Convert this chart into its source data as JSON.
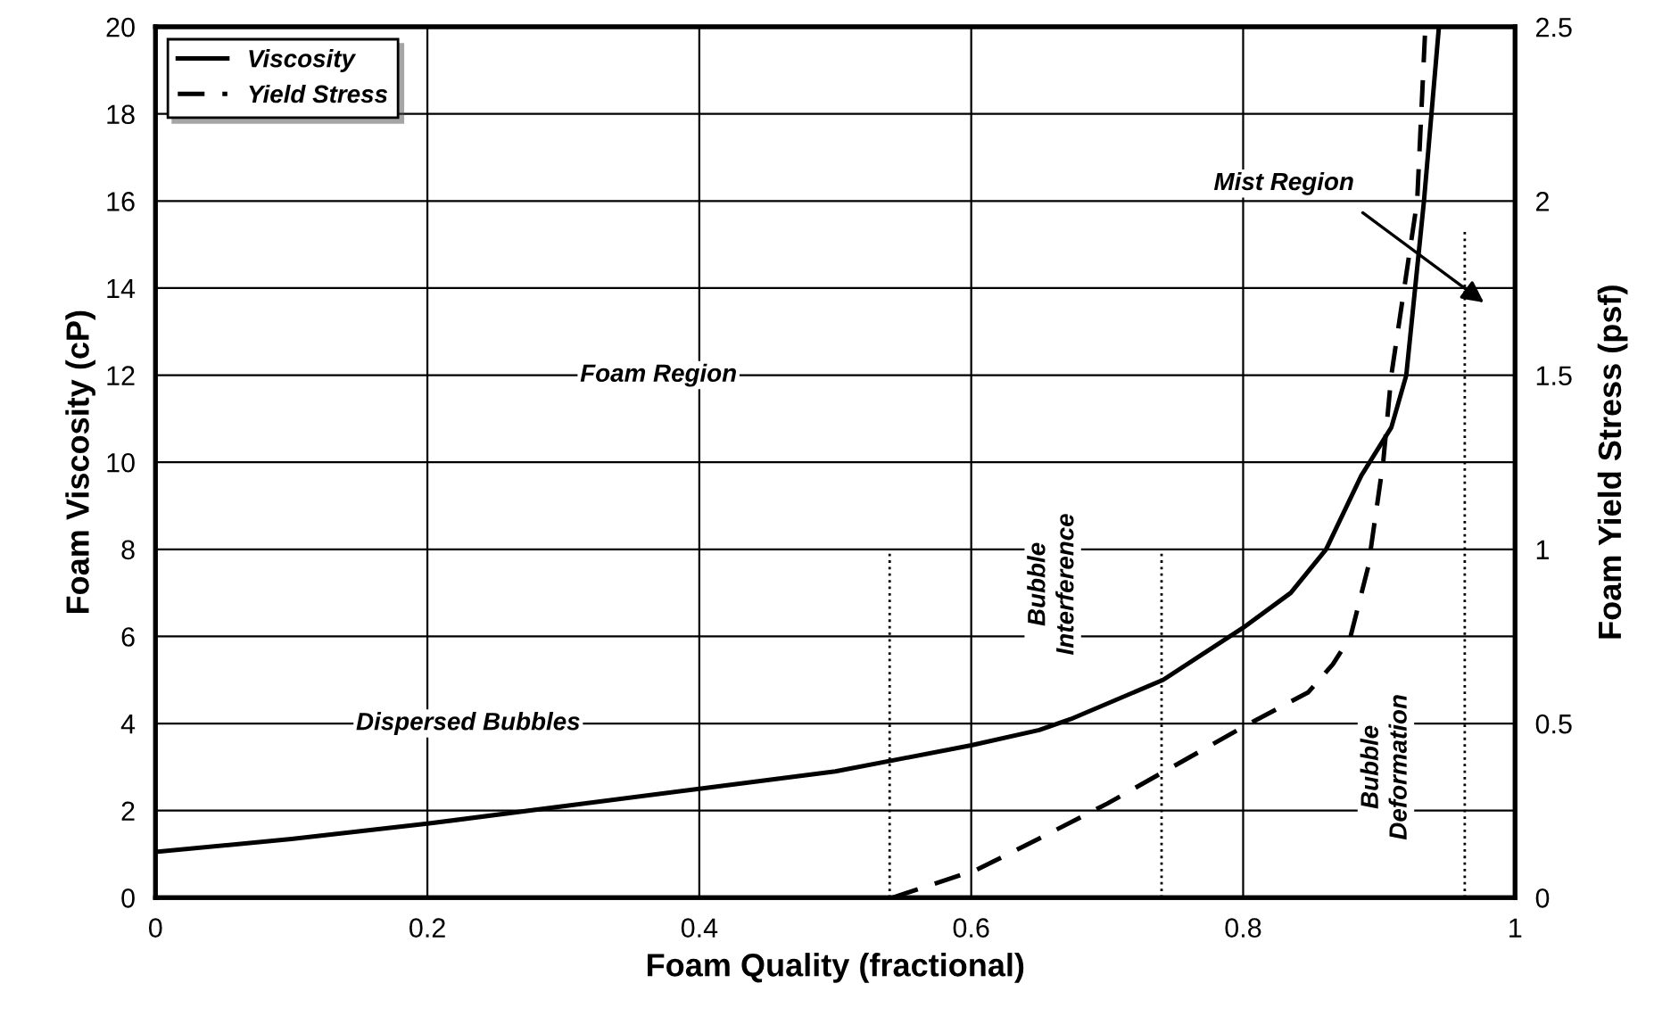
{
  "chart_data": {
    "type": "line",
    "xlabel": "Foam Quality (fractional)",
    "ylabel": "Foam Viscosity (cP)",
    "y2label": "Foam Yield Stress (psf)",
    "xlim": [
      0,
      1
    ],
    "xticks": [
      0,
      0.2,
      0.4,
      0.6,
      0.8,
      1
    ],
    "ylim": [
      0,
      20
    ],
    "yticks": [
      0,
      2,
      4,
      6,
      8,
      10,
      12,
      14,
      16,
      18,
      20
    ],
    "y2lim": [
      0,
      2.5
    ],
    "y2ticks": [
      0,
      0.5,
      1,
      1.5,
      2,
      2.5
    ],
    "grid": true,
    "legend": "top left",
    "marker": "none",
    "series": [
      {
        "name": "Viscosity",
        "color": "#000000",
        "line_style": "solid",
        "x": [
          0,
          0.1,
          0.2,
          0.3,
          0.4,
          0.5,
          0.55,
          0.6,
          0.65,
          0.673,
          0.741,
          0.8,
          0.835,
          0.861,
          0.887,
          0.909,
          0.92,
          0.933,
          0.944
        ],
        "values": [
          1.05,
          1.35,
          1.7,
          2.1,
          2.5,
          2.9,
          3.2,
          3.5,
          3.85,
          4.1,
          5.0,
          6.2,
          7.0,
          8.0,
          9.7,
          10.8,
          12.0,
          16.0,
          20.0
        ]
      },
      {
        "name": "Yield Stress",
        "color": "#000000",
        "line_style": "dashed",
        "axis": "y2",
        "x": [
          0.542,
          0.604,
          0.65,
          0.7,
          0.741,
          0.8,
          0.848,
          0.866,
          0.879,
          0.892,
          0.903,
          0.909,
          0.928,
          0.934
        ],
        "values": [
          0,
          0.08,
          0.17,
          0.27,
          0.36,
          0.49,
          0.59,
          0.67,
          0.75,
          0.95,
          1.25,
          1.5,
          2.0,
          2.5
        ]
      },
      {
        "color": "#000000",
        "line_style": "dotted",
        "x": [
          0.54,
          0.54
        ],
        "values": [
          0,
          8
        ]
      },
      {
        "color": "#000000",
        "line_style": "dotted",
        "x": [
          0.74,
          0.74
        ],
        "values": [
          0,
          8
        ]
      },
      {
        "color": "#000000",
        "line_style": "dotted",
        "x": [
          0.963,
          0.963
        ],
        "values": [
          0,
          15.3
        ]
      }
    ],
    "annotations": [
      "Foam Region",
      "Dispersed Bubbles",
      "Bubble Interference",
      "Bubble Deformation",
      "Mist Region"
    ]
  }
}
